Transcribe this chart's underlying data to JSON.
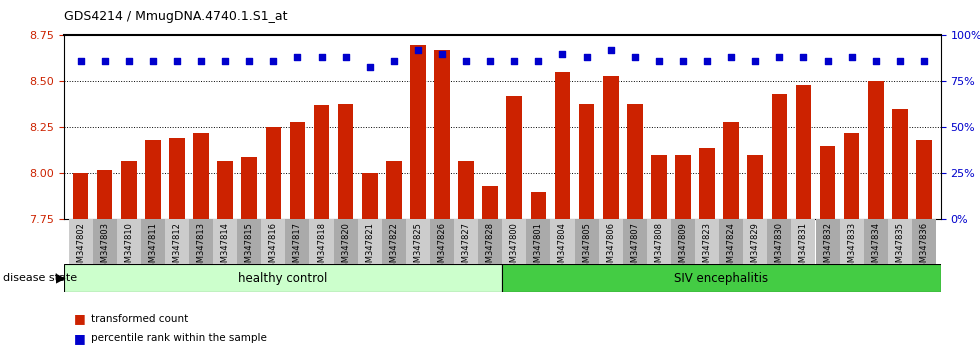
{
  "title": "GDS4214 / MmugDNA.4740.1.S1_at",
  "samples": [
    "GSM347802",
    "GSM347803",
    "GSM347810",
    "GSM347811",
    "GSM347812",
    "GSM347813",
    "GSM347814",
    "GSM347815",
    "GSM347816",
    "GSM347817",
    "GSM347818",
    "GSM347820",
    "GSM347821",
    "GSM347822",
    "GSM347825",
    "GSM347826",
    "GSM347827",
    "GSM347828",
    "GSM347800",
    "GSM347801",
    "GSM347804",
    "GSM347805",
    "GSM347806",
    "GSM347807",
    "GSM347808",
    "GSM347809",
    "GSM347823",
    "GSM347824",
    "GSM347829",
    "GSM347830",
    "GSM347831",
    "GSM347832",
    "GSM347833",
    "GSM347834",
    "GSM347835",
    "GSM347836"
  ],
  "bar_values": [
    8.0,
    8.02,
    8.07,
    8.18,
    8.19,
    8.22,
    8.07,
    8.09,
    8.25,
    8.28,
    8.37,
    8.38,
    8.0,
    8.07,
    8.7,
    8.67,
    8.07,
    7.93,
    8.42,
    7.9,
    8.55,
    8.38,
    8.53,
    8.38,
    8.1,
    8.1,
    8.14,
    8.28,
    8.1,
    8.43,
    8.48,
    8.15,
    8.22,
    8.5,
    8.35,
    8.18
  ],
  "percentile_values": [
    86,
    86,
    86,
    86,
    86,
    86,
    86,
    86,
    86,
    88,
    88,
    88,
    83,
    86,
    92,
    90,
    86,
    86,
    86,
    86,
    90,
    88,
    92,
    88,
    86,
    86,
    86,
    88,
    86,
    88,
    88,
    86,
    88,
    86,
    86,
    86
  ],
  "group1_label": "healthy control",
  "group2_label": "SIV encephalitis",
  "group1_count": 18,
  "group2_count": 18,
  "ylim_left": [
    7.75,
    8.75
  ],
  "ylim_right": [
    0,
    100
  ],
  "yticks_left": [
    7.75,
    8.0,
    8.25,
    8.5,
    8.75
  ],
  "yticks_right": [
    0,
    25,
    50,
    75,
    100
  ],
  "bar_color": "#cc2200",
  "dot_color": "#0000cc",
  "group1_bg": "#ccffcc",
  "group2_bg": "#44cc44",
  "tick_bg_light": "#cccccc",
  "tick_bg_dark": "#aaaaaa",
  "legend_bar_label": "transformed count",
  "legend_dot_label": "percentile rank within the sample",
  "disease_state_label": "disease state"
}
